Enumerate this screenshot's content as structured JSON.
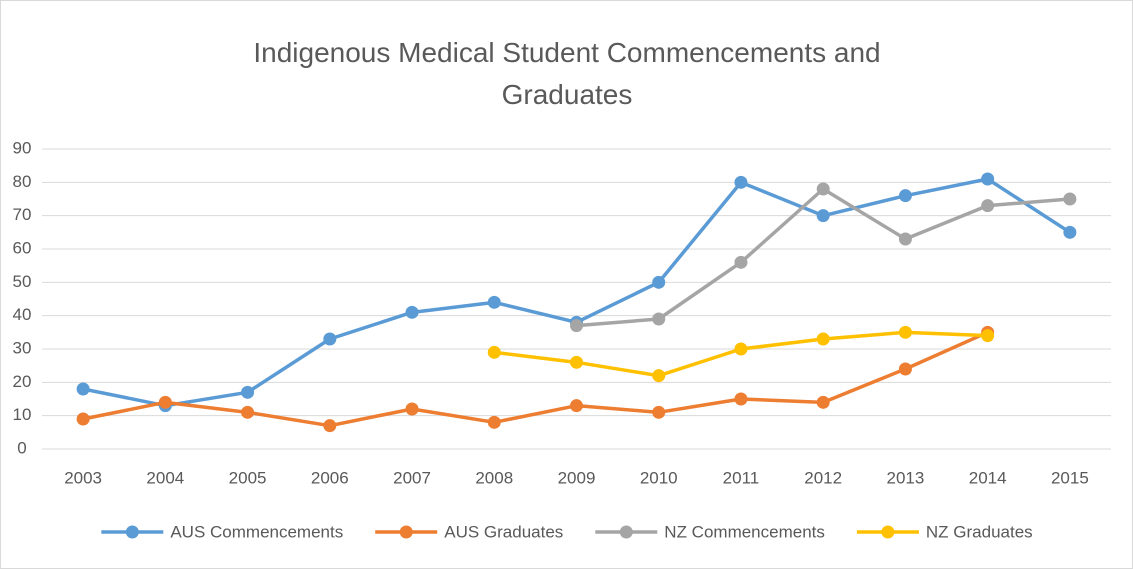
{
  "chart_data": {
    "type": "line",
    "title": "Indigenous Medical Student Commencements and Graduates",
    "categories": [
      "2003",
      "2004",
      "2005",
      "2006",
      "2007",
      "2008",
      "2009",
      "2010",
      "2011",
      "2012",
      "2013",
      "2014",
      "2015"
    ],
    "series": [
      {
        "name": "AUS Commencements",
        "color": "#5b9bd5",
        "values": [
          18,
          13,
          17,
          33,
          41,
          44,
          38,
          50,
          80,
          70,
          76,
          81,
          65
        ]
      },
      {
        "name": "AUS Graduates",
        "color": "#ed7d31",
        "values": [
          9,
          14,
          11,
          7,
          12,
          8,
          13,
          11,
          15,
          14,
          24,
          35,
          null
        ]
      },
      {
        "name": "NZ Commencements",
        "color": "#a5a5a5",
        "values": [
          null,
          null,
          null,
          null,
          null,
          null,
          37,
          39,
          56,
          78,
          63,
          73,
          75
        ]
      },
      {
        "name": "NZ Graduates",
        "color": "#ffc000",
        "values": [
          null,
          null,
          null,
          null,
          null,
          29,
          26,
          22,
          30,
          33,
          35,
          34,
          null
        ]
      }
    ],
    "ylim": [
      0,
      90
    ],
    "yticks": [
      0,
      10,
      20,
      30,
      40,
      50,
      60,
      70,
      80,
      90
    ],
    "grid": true,
    "legend": "bottom"
  }
}
